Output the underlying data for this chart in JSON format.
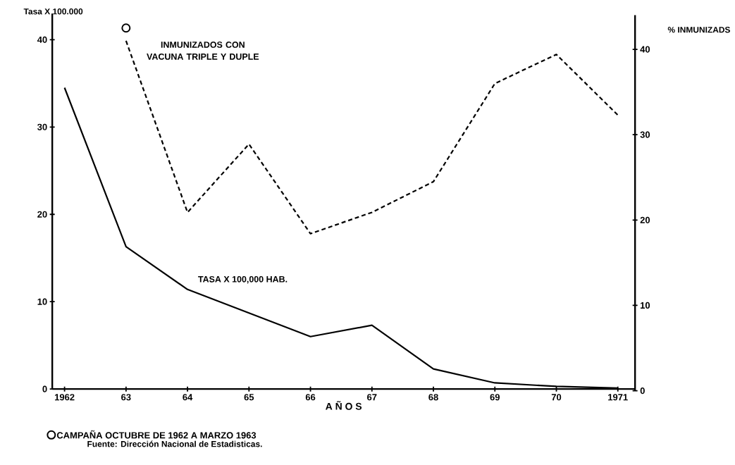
{
  "chart_data": {
    "type": "line",
    "categories": [
      "1962",
      "63",
      "64",
      "65",
      "66",
      "67",
      "68",
      "69",
      "70",
      "1971"
    ],
    "series": [
      {
        "name": "TASA X 100,000 HAB.",
        "color": "#000000",
        "line_style": "solid",
        "values": [
          34.5,
          16.3,
          11.4,
          8.7,
          6.0,
          7.3,
          2.3,
          0.7,
          0.3,
          0.1
        ]
      },
      {
        "name": "INMUNIZADOS CON VACUNA TRIPLE Y DUPLE",
        "color": "#000000",
        "line_style": "dashed",
        "axis": "y2",
        "values": [
          null,
          41,
          20.9,
          28.9,
          18.4,
          20.9,
          24.5,
          36,
          39.4,
          32.3
        ]
      },
      {
        "name": "CAMPAÑA OCTUBRE DE 1962 A MARZO 1963",
        "type": "scatter",
        "marker": "circle",
        "color": "#000000",
        "axis": "y2",
        "values": [
          null,
          42.5,
          null,
          null,
          null,
          null,
          null,
          null,
          null,
          null
        ]
      }
    ],
    "ylabel": "Tasa X 100.000",
    "y2label": "% INMUNIZADS",
    "xlabel": "A Ñ O S",
    "ylim": [
      0,
      43
    ],
    "yticks": [
      0,
      10,
      20,
      30,
      40
    ],
    "y2lim": [
      0,
      44
    ],
    "y2ticks": [
      0,
      10,
      20,
      30,
      40
    ],
    "legend": "bottom left",
    "annotations": [
      "Fuente: Dirección Nacional de Estadisticas."
    ]
  }
}
